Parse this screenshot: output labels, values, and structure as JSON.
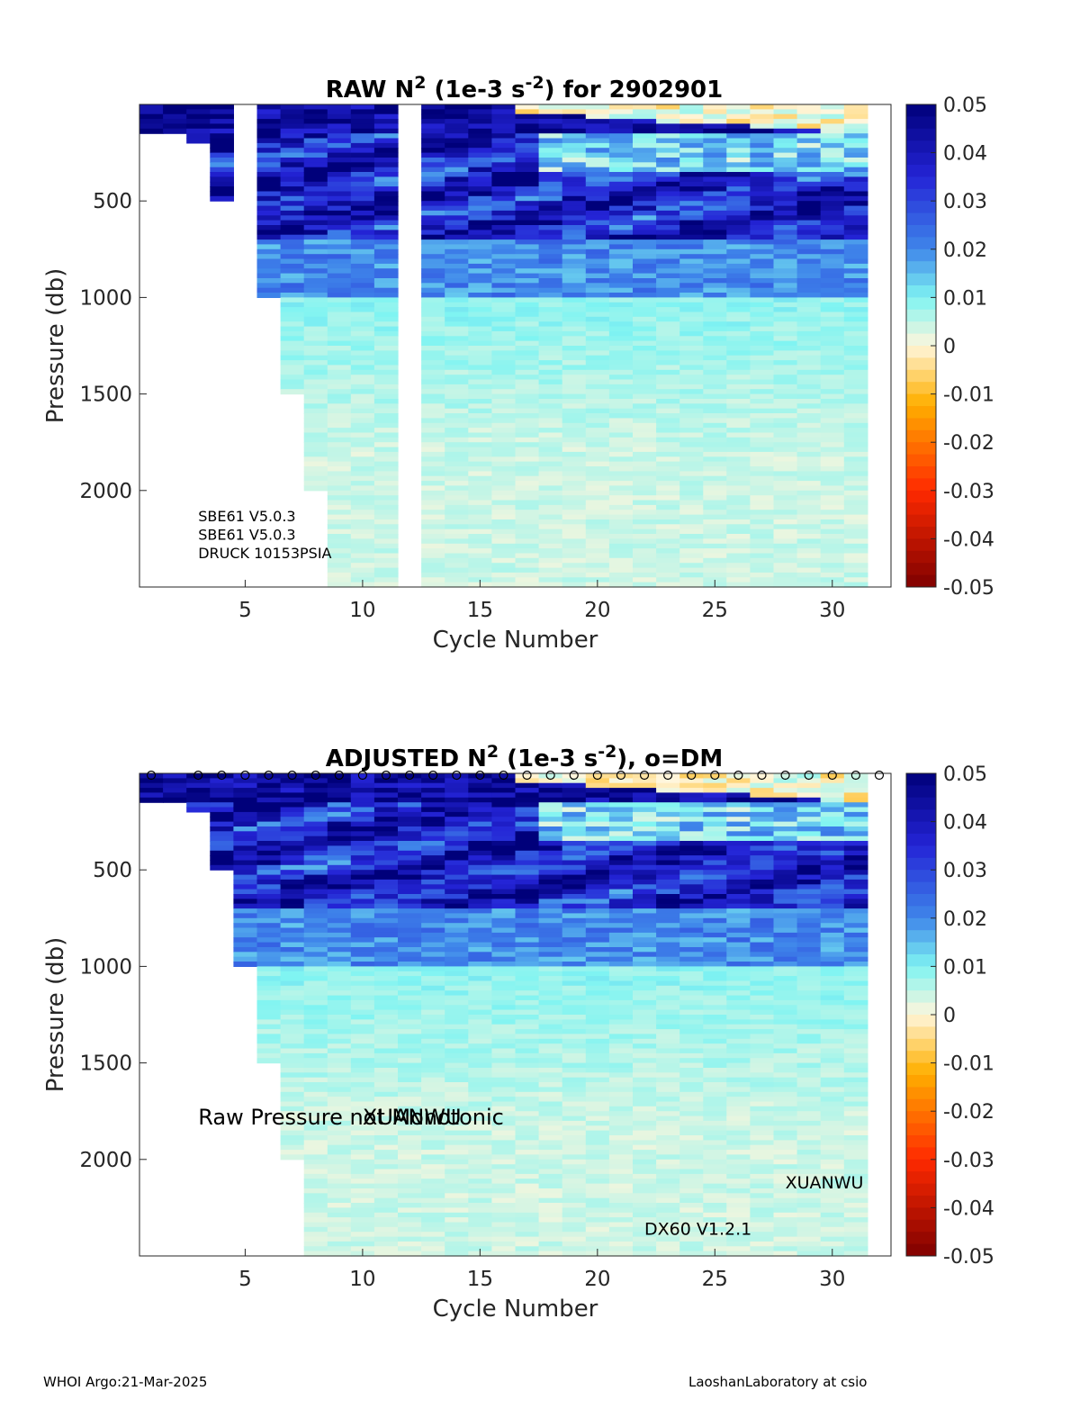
{
  "colors": {
    "neg_max": "#7f0000",
    "neg_mid": "#ff2a00",
    "neg_low": "#ffb000",
    "zero": "#fff6dc",
    "pos_low": "#7ff4f2",
    "pos_mid": "#3f86ea",
    "pos_high": "#2424d6",
    "pos_max": "#00007a"
  },
  "chart_data": [
    {
      "type": "heatmap",
      "title_prefix": "RAW N",
      "title_sup1": "2",
      "title_mid": " (1e-3 s",
      "title_sup2": "-2",
      "title_suffix": ") for 2902901",
      "xlabel": "Cycle Number",
      "ylabel": "Pressure (db)",
      "xlim": [
        1,
        32
      ],
      "ylim": [
        0,
        2500
      ],
      "y_reversed": true,
      "x_ticks": [
        5,
        10,
        15,
        20,
        25,
        30
      ],
      "x_tick_labels": [
        "5",
        "10",
        "15",
        "20",
        "25",
        "30"
      ],
      "y_ticks": [
        500,
        1000,
        1500,
        2000
      ],
      "y_tick_labels": [
        "500",
        "1000",
        "1500",
        "2000"
      ],
      "colorbar": {
        "range": [
          -0.05,
          0.05
        ],
        "ticks": [
          0.05,
          0.04,
          0.03,
          0.02,
          0.01,
          0,
          -0.01,
          -0.02,
          -0.03,
          -0.04,
          -0.05
        ],
        "tick_labels": [
          "0.05",
          "0.04",
          "0.03",
          "0.02",
          "0.01",
          "0",
          "-0.01",
          "-0.02",
          "-0.03",
          "-0.04",
          "-0.05"
        ]
      },
      "profile_max_pressure_by_cycle": [
        150,
        150,
        200,
        500,
        0,
        1000,
        1500,
        2000,
        2500,
        2500,
        2500,
        0,
        2500,
        2500,
        2500,
        2500,
        2500,
        2500,
        2500,
        2500,
        2500,
        2500,
        2500,
        2500,
        2500,
        2500,
        2500,
        2500,
        2500,
        2500,
        2500
      ],
      "profile_structure": {
        "surface_n2": 0.045,
        "pycnocline_top_pressure": 150,
        "pycnocline_bottom_pressure": 700,
        "pycnocline_n2": 0.037,
        "mid_n2": 0.02,
        "deep_n2": 0.004
      },
      "annotations": [
        {
          "text": "SBE61 V5.0.3",
          "x": 3,
          "y": 2160,
          "size": "small"
        },
        {
          "text": "SBE61 V5.0.3",
          "x": 3,
          "y": 2255,
          "size": "small"
        },
        {
          "text": "DRUCK 10153PSIA",
          "x": 3,
          "y": 2350,
          "size": "small"
        }
      ],
      "dm_marker_cycles": []
    },
    {
      "type": "heatmap",
      "title_prefix": "ADJUSTED N",
      "title_sup1": "2",
      "title_mid": " (1e-3 s",
      "title_sup2": "-2",
      "title_suffix": "), o=DM",
      "xlabel": "Cycle Number",
      "ylabel": "Pressure (db)",
      "xlim": [
        1,
        32
      ],
      "ylim": [
        0,
        2500
      ],
      "y_reversed": true,
      "x_ticks": [
        5,
        10,
        15,
        20,
        25,
        30
      ],
      "x_tick_labels": [
        "5",
        "10",
        "15",
        "20",
        "25",
        "30"
      ],
      "y_ticks": [
        500,
        1000,
        1500,
        2000
      ],
      "y_tick_labels": [
        "500",
        "1000",
        "1500",
        "2000"
      ],
      "colorbar": {
        "range": [
          -0.05,
          0.05
        ],
        "ticks": [
          0.05,
          0.04,
          0.03,
          0.02,
          0.01,
          0,
          -0.01,
          -0.02,
          -0.03,
          -0.04,
          -0.05
        ],
        "tick_labels": [
          "0.05",
          "0.04",
          "0.03",
          "0.02",
          "0.01",
          "0",
          "-0.01",
          "-0.02",
          "-0.03",
          "-0.04",
          "-0.05"
        ]
      },
      "profile_max_pressure_by_cycle": [
        150,
        150,
        200,
        500,
        1000,
        1500,
        2000,
        2500,
        2500,
        2500,
        2500,
        2500,
        2500,
        2500,
        2500,
        2500,
        2500,
        2500,
        2500,
        2500,
        2500,
        2500,
        2500,
        2500,
        2500,
        2500,
        2500,
        2500,
        2500,
        2500,
        2500
      ],
      "profile_structure": {
        "surface_n2": 0.045,
        "pycnocline_top_pressure": 150,
        "pycnocline_bottom_pressure": 700,
        "pycnocline_n2": 0.037,
        "mid_n2": 0.02,
        "deep_n2": 0.004
      },
      "annotations": [
        {
          "text": "Raw Pressure not Monotonic",
          "x": 3,
          "y": 1820,
          "size": "large"
        },
        {
          "text": "XUANWU",
          "x": 10,
          "y": 1820,
          "size": "large"
        },
        {
          "text": "XUANWU",
          "x": 28,
          "y": 2150,
          "size": "medium"
        },
        {
          "text": "DX60 V1.2.1",
          "x": 22,
          "y": 2390,
          "size": "medium"
        }
      ],
      "dm_marker_cycles": [
        1,
        3,
        4,
        5,
        6,
        7,
        8,
        9,
        10,
        11,
        12,
        13,
        14,
        15,
        16,
        17,
        18,
        19,
        20,
        21,
        22,
        23,
        24,
        25,
        26,
        27,
        28,
        29,
        30,
        31,
        32
      ]
    }
  ],
  "footer": {
    "left": "WHOI Argo:21-Mar-2025",
    "right": "LaoshanLaboratory at csio"
  }
}
